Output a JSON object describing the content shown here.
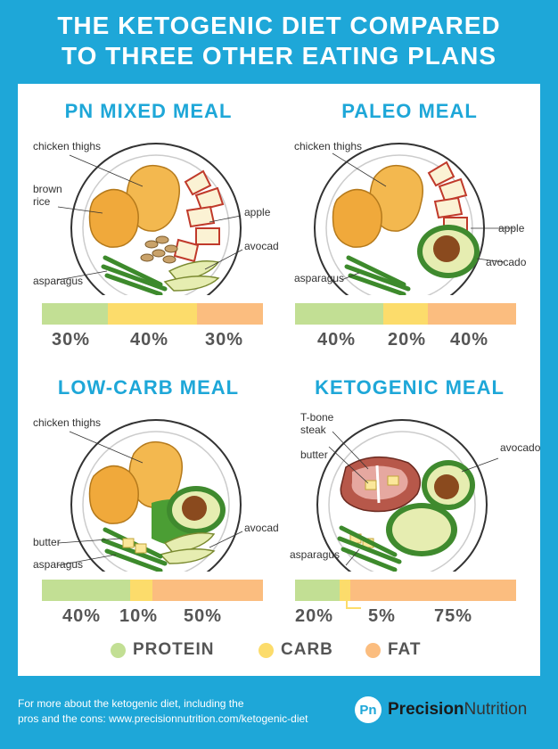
{
  "title_line1": "THE KETOGENIC DIET COMPARED",
  "title_line2": "TO THREE OTHER EATING PLANS",
  "colors": {
    "protein": "#c2df94",
    "carb": "#fcdc6b",
    "fat": "#fbbd7f",
    "accent": "#1ea7d8"
  },
  "meals": [
    {
      "title": "PN MIXED MEAL",
      "labels": {
        "chicken": "chicken thighs",
        "brown_rice_1": "brown",
        "brown_rice_2": "rice",
        "apple": "apple",
        "avocado": "avocado",
        "asparagus": "asparagus"
      },
      "protein": 30,
      "carb": 40,
      "fat": 30,
      "protein_label": "30%",
      "carb_label": "40%",
      "fat_label": "30%"
    },
    {
      "title": "PALEO MEAL",
      "labels": {
        "chicken": "chicken thighs",
        "apple": "apple",
        "avocado": "avocado",
        "asparagus": "asparagus"
      },
      "protein": 40,
      "carb": 20,
      "fat": 40,
      "protein_label": "40%",
      "carb_label": "20%",
      "fat_label": "40%"
    },
    {
      "title": "LOW-CARB MEAL",
      "labels": {
        "chicken": "chicken thighs",
        "butter": "butter",
        "avocado": "avocado",
        "asparagus": "asparagus"
      },
      "protein": 40,
      "carb": 10,
      "fat": 50,
      "protein_label": "40%",
      "carb_label": "10%",
      "fat_label": "50%"
    },
    {
      "title": "KETOGENIC MEAL",
      "labels": {
        "steak_1": "T-bone",
        "steak_2": "steak",
        "butter": "butter",
        "avocado": "avocado",
        "asparagus": "asparagus"
      },
      "protein": 20,
      "carb": 5,
      "fat": 75,
      "protein_label": "20%",
      "carb_label": "5%",
      "fat_label": "75%"
    }
  ],
  "legend": {
    "protein": "PROTEIN",
    "carb": "CARB",
    "fat": "FAT"
  },
  "footer_line1": "For more about the ketogenic diet, including the",
  "footer_line2": "pros and the cons: www.precisionnutrition.com/ketogenic-diet",
  "brand": {
    "logo": "Pn",
    "name_bold": "Precision",
    "name_rest": "Nutrition"
  }
}
